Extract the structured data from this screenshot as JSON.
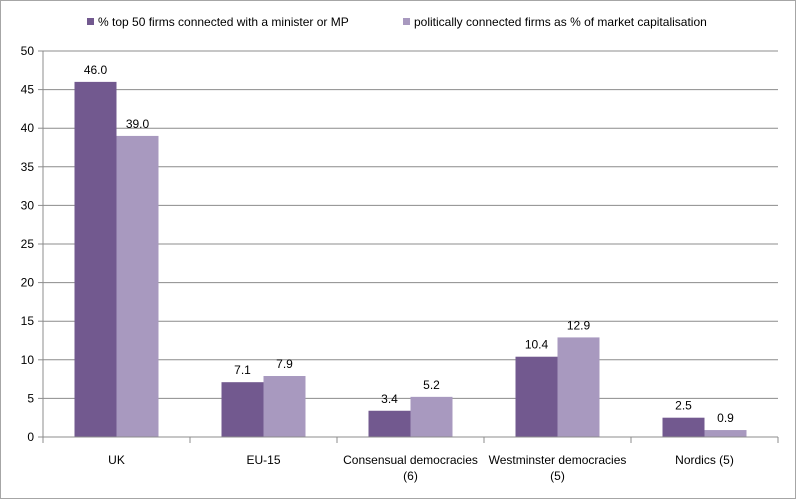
{
  "chart_data": {
    "type": "bar",
    "categories": [
      [
        "UK"
      ],
      [
        "EU-15"
      ],
      [
        "Consensual democracies",
        "(6)"
      ],
      [
        "Westminster democracies",
        "(5)"
      ],
      [
        "Nordics (5)"
      ]
    ],
    "series": [
      {
        "name": "% top 50 firms connected with a minister or MP",
        "color": "#72598f",
        "values": [
          46.0,
          7.1,
          3.4,
          10.4,
          2.5
        ]
      },
      {
        "name": "politically connected firms as % of market capitalisation",
        "color": "#a899bf",
        "values": [
          39.0,
          7.9,
          5.2,
          12.9,
          0.9
        ]
      }
    ],
    "ylim": [
      0,
      50
    ],
    "yticks": [
      0,
      5,
      10,
      15,
      20,
      25,
      30,
      35,
      40,
      45,
      50
    ],
    "grid": true,
    "legend": "top",
    "data_labels": true,
    "title": "",
    "xlabel": "",
    "ylabel": ""
  }
}
